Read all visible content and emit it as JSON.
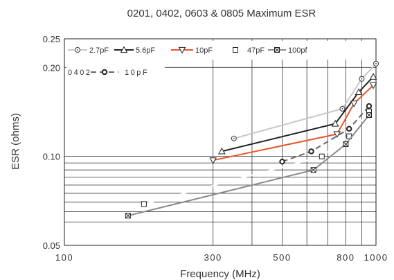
{
  "chart_data": {
    "type": "line",
    "title": "0201, 0402, 0603 & 0805 Maximum ESR",
    "xlabel": "Frequency (MHz)",
    "ylabel": "ESR (ohms)",
    "x_scale": "log",
    "y_scale": "log",
    "xlim": [
      100,
      1000
    ],
    "ylim": [
      0.05,
      0.25
    ],
    "x_ticks": [
      {
        "value": 100,
        "label": "100"
      },
      {
        "value": 300,
        "label": "300"
      },
      {
        "value": 500,
        "label": "500"
      },
      {
        "value": 800,
        "label": "800"
      },
      {
        "value": 1000,
        "label": "1000"
      }
    ],
    "y_ticks": [
      {
        "value": 0.05,
        "label": "0.05"
      },
      {
        "value": 0.1,
        "label": "0.10"
      },
      {
        "value": 0.2,
        "label": "0.20"
      },
      {
        "value": 0.25,
        "label": "0.25"
      }
    ],
    "x_grid": [
      300,
      400,
      500,
      600,
      700,
      800,
      900,
      1000
    ],
    "y_grid": [
      0.06,
      0.065,
      0.07,
      0.075,
      0.08,
      0.085,
      0.09,
      0.095,
      0.1,
      0.2
    ],
    "grid": true,
    "legend_position": "top",
    "series": [
      {
        "name": "2.7pF",
        "color": "#c8c8c8",
        "marker": "circle-dot",
        "dash": false,
        "x": [
          350,
          780,
          900,
          1000
        ],
        "y": [
          0.115,
          0.145,
          0.183,
          0.206
        ]
      },
      {
        "name": "5.6pF",
        "color": "#222222",
        "marker": "triangle-up",
        "dash": false,
        "x": [
          320,
          740,
          880,
          980
        ],
        "y": [
          0.104,
          0.129,
          0.165,
          0.186
        ]
      },
      {
        "name": "10pF",
        "color": "#e8542a",
        "marker": "triangle-down",
        "dash": false,
        "x": [
          300,
          750,
          850,
          980
        ],
        "y": [
          0.097,
          0.119,
          0.151,
          0.174
        ]
      },
      {
        "name": "47pF",
        "color": "#ffffff",
        "marker": "square",
        "dash": false,
        "x": [
          180,
          670,
          820,
          950
        ],
        "y": [
          0.069,
          0.1,
          0.117,
          0.142
        ]
      },
      {
        "name": "100pf",
        "color": "#8a8a8a",
        "marker": "square-x",
        "dash": false,
        "x": [
          160,
          630,
          800,
          950
        ],
        "y": [
          0.063,
          0.09,
          0.11,
          0.138
        ]
      },
      {
        "name": "0402 - 10pF",
        "color": "#666666",
        "marker": "circle-bold",
        "dash": true,
        "x": [
          500,
          620,
          820,
          950
        ],
        "y": [
          0.096,
          0.104,
          0.124,
          0.148
        ]
      }
    ],
    "legend": {
      "row1": [
        "2.7pF",
        "5.6pF",
        "10pF",
        "47pF",
        "100pf"
      ],
      "row2_label": "0402",
      "row2_tail": "10pF"
    }
  }
}
